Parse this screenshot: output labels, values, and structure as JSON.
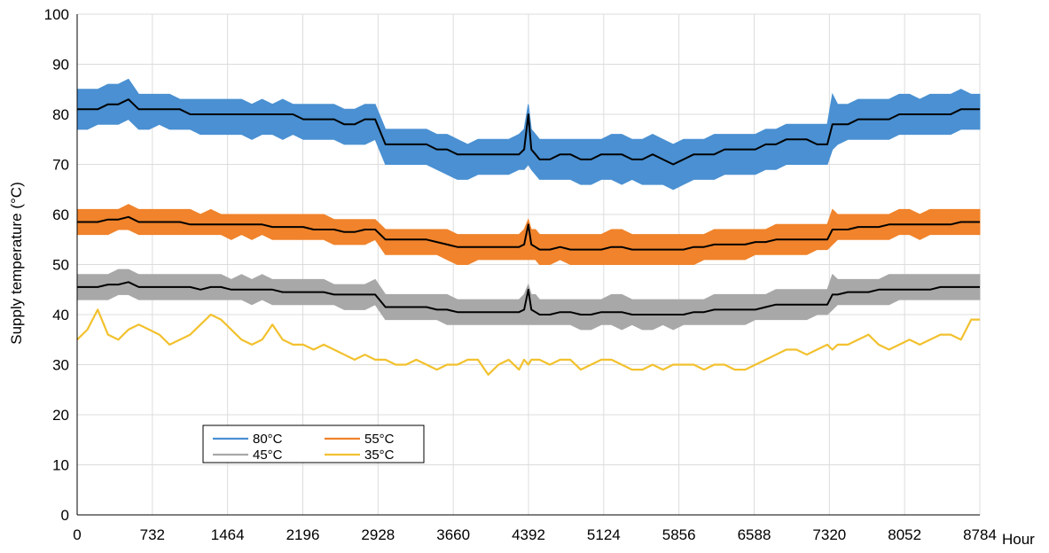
{
  "chart_data": {
    "type": "line",
    "title": "",
    "xlabel": "Hour",
    "ylabel": "Supply temperature (°C)",
    "xlim": [
      0,
      8784
    ],
    "ylim": [
      0,
      100
    ],
    "x_ticks": [
      0,
      732,
      1464,
      2196,
      2928,
      3660,
      4392,
      5124,
      5856,
      6588,
      7320,
      8052,
      8784
    ],
    "y_ticks": [
      0,
      10,
      20,
      30,
      40,
      50,
      60,
      70,
      80,
      90,
      100
    ],
    "grid": "vertical-and-horizontal",
    "legend_position": "lower-left",
    "x": [
      0,
      100,
      200,
      300,
      400,
      500,
      600,
      700,
      800,
      900,
      1000,
      1100,
      1200,
      1300,
      1400,
      1500,
      1600,
      1700,
      1800,
      1900,
      2000,
      2100,
      2200,
      2300,
      2400,
      2500,
      2600,
      2700,
      2800,
      2900,
      3000,
      3100,
      3200,
      3300,
      3400,
      3500,
      3600,
      3700,
      3800,
      3900,
      4000,
      4100,
      4200,
      4300,
      4350,
      4390,
      4420,
      4460,
      4500,
      4600,
      4700,
      4800,
      4900,
      5000,
      5100,
      5200,
      5300,
      5400,
      5500,
      5600,
      5700,
      5800,
      5900,
      6000,
      6100,
      6200,
      6300,
      6400,
      6500,
      6600,
      6700,
      6800,
      6900,
      7000,
      7100,
      7200,
      7300,
      7350,
      7400,
      7500,
      7600,
      7700,
      7800,
      7900,
      8000,
      8100,
      8200,
      8300,
      8400,
      8500,
      8600,
      8700,
      8784
    ],
    "series": [
      {
        "name": "80°C",
        "color": "#4a90d2",
        "upper": [
          85,
          85,
          85,
          86,
          86,
          87,
          84,
          84,
          84,
          84,
          83,
          83,
          83,
          83,
          83,
          83,
          83,
          82,
          83,
          82,
          83,
          82,
          82,
          82,
          82,
          82,
          81,
          81,
          82,
          82,
          77,
          77,
          77,
          77,
          77,
          76,
          76,
          75,
          74,
          75,
          75,
          75,
          75,
          76,
          77,
          82,
          77,
          76,
          75,
          75,
          75,
          75,
          75,
          75,
          75,
          76,
          76,
          75,
          75,
          76,
          75,
          74,
          75,
          75,
          75,
          76,
          76,
          76,
          76,
          76,
          77,
          77,
          78,
          78,
          78,
          78,
          78,
          84,
          82,
          82,
          83,
          83,
          83,
          83,
          84,
          84,
          83,
          84,
          84,
          84,
          85,
          84,
          84
        ],
        "lower": [
          77,
          77,
          78,
          78,
          78,
          79,
          77,
          77,
          78,
          77,
          77,
          77,
          76,
          76,
          76,
          76,
          76,
          75,
          76,
          76,
          75,
          76,
          75,
          75,
          75,
          75,
          74,
          74,
          74,
          75,
          70,
          70,
          70,
          70,
          70,
          69,
          68,
          67,
          67,
          68,
          68,
          68,
          68,
          69,
          69,
          70,
          69,
          68,
          67,
          67,
          67,
          67,
          66,
          66,
          67,
          67,
          66,
          67,
          66,
          66,
          66,
          65,
          66,
          67,
          67,
          67,
          68,
          68,
          68,
          68,
          69,
          69,
          70,
          70,
          70,
          70,
          70,
          73,
          74,
          75,
          75,
          75,
          75,
          75,
          76,
          76,
          76,
          76,
          76,
          76,
          77,
          77,
          77
        ]
      },
      {
        "name": "55°C",
        "color": "#f0832b",
        "upper": [
          61,
          61,
          61,
          61,
          61,
          62,
          61,
          61,
          61,
          61,
          61,
          61,
          60,
          61,
          60,
          60,
          60,
          60,
          60,
          60,
          60,
          60,
          60,
          60,
          60,
          59,
          59,
          59,
          59,
          59,
          57,
          57,
          57,
          57,
          57,
          57,
          57,
          56,
          56,
          56,
          56,
          56,
          56,
          56,
          57,
          59,
          57,
          57,
          56,
          56,
          56,
          56,
          56,
          56,
          56,
          57,
          57,
          56,
          56,
          56,
          56,
          56,
          56,
          56,
          56,
          57,
          57,
          57,
          57,
          57,
          57,
          58,
          58,
          58,
          58,
          58,
          58,
          61,
          60,
          60,
          60,
          60,
          60,
          60,
          61,
          61,
          60,
          61,
          61,
          61,
          61,
          61,
          61
        ],
        "lower": [
          56,
          56,
          56,
          56,
          57,
          57,
          56,
          56,
          56,
          56,
          56,
          56,
          56,
          56,
          56,
          55,
          56,
          55,
          56,
          55,
          55,
          55,
          55,
          55,
          55,
          54,
          54,
          54,
          54,
          55,
          52,
          52,
          52,
          52,
          52,
          52,
          51,
          50,
          50,
          51,
          51,
          51,
          51,
          51,
          51,
          51,
          51,
          51,
          50,
          50,
          51,
          50,
          50,
          50,
          50,
          50,
          50,
          50,
          50,
          50,
          50,
          50,
          50,
          50,
          51,
          51,
          51,
          51,
          51,
          52,
          52,
          52,
          52,
          52,
          52,
          53,
          53,
          54,
          55,
          55,
          55,
          55,
          55,
          55,
          56,
          56,
          55,
          56,
          56,
          56,
          56,
          56,
          56
        ]
      },
      {
        "name": "45°C",
        "color": "#a8a8a8",
        "upper": [
          48,
          48,
          48,
          48,
          49,
          49,
          48,
          48,
          48,
          48,
          48,
          48,
          48,
          48,
          48,
          47,
          48,
          47,
          48,
          47,
          47,
          47,
          47,
          47,
          47,
          46,
          46,
          46,
          46,
          47,
          44,
          44,
          44,
          44,
          44,
          44,
          44,
          43,
          43,
          43,
          43,
          43,
          43,
          43,
          44,
          46,
          44,
          44,
          43,
          43,
          43,
          43,
          43,
          43,
          43,
          44,
          44,
          43,
          43,
          43,
          43,
          43,
          43,
          43,
          43,
          44,
          44,
          44,
          44,
          44,
          44,
          45,
          45,
          45,
          45,
          45,
          45,
          48,
          47,
          47,
          47,
          47,
          47,
          48,
          48,
          48,
          48,
          48,
          48,
          48,
          48,
          48,
          48
        ],
        "lower": [
          43,
          43,
          43,
          43,
          44,
          44,
          43,
          43,
          43,
          43,
          43,
          43,
          43,
          43,
          43,
          43,
          43,
          42,
          43,
          42,
          42,
          42,
          42,
          42,
          42,
          42,
          41,
          41,
          41,
          42,
          39,
          39,
          39,
          39,
          39,
          39,
          38,
          38,
          38,
          38,
          38,
          38,
          38,
          38,
          38,
          38,
          38,
          38,
          38,
          38,
          38,
          38,
          37,
          37,
          38,
          38,
          37,
          38,
          37,
          37,
          38,
          37,
          38,
          38,
          38,
          38,
          38,
          38,
          38,
          39,
          39,
          39,
          39,
          39,
          39,
          40,
          40,
          41,
          42,
          42,
          42,
          42,
          42,
          42,
          43,
          43,
          43,
          43,
          43,
          43,
          43,
          43,
          43
        ]
      },
      {
        "name": "35°C",
        "color": "#f2c12e",
        "values": [
          35,
          37,
          41,
          36,
          35,
          37,
          38,
          37,
          36,
          34,
          35,
          36,
          38,
          40,
          39,
          37,
          35,
          34,
          35,
          38,
          35,
          34,
          34,
          33,
          34,
          33,
          32,
          31,
          32,
          31,
          31,
          30,
          30,
          31,
          30,
          29,
          30,
          30,
          31,
          31,
          28,
          30,
          31,
          29,
          31,
          30,
          31,
          31,
          31,
          30,
          31,
          31,
          29,
          30,
          31,
          31,
          30,
          29,
          29,
          30,
          29,
          30,
          30,
          30,
          29,
          30,
          30,
          29,
          29,
          30,
          31,
          32,
          33,
          33,
          32,
          33,
          34,
          33,
          34,
          34,
          35,
          36,
          34,
          33,
          34,
          35,
          34,
          35,
          36,
          36,
          35,
          39,
          39
        ]
      }
    ],
    "black_lines": [
      [
        81,
        81,
        81,
        82,
        82,
        83,
        81,
        81,
        81,
        81,
        81,
        80,
        80,
        80,
        80,
        80,
        80,
        80,
        80,
        80,
        80,
        80,
        79,
        79,
        79,
        79,
        78,
        78,
        79,
        79,
        74,
        74,
        74,
        74,
        74,
        73,
        73,
        72,
        72,
        72,
        72,
        72,
        72,
        72,
        73,
        80,
        73,
        72,
        71,
        71,
        72,
        72,
        71,
        71,
        72,
        72,
        72,
        71,
        71,
        72,
        71,
        70,
        71,
        72,
        72,
        72,
        73,
        73,
        73,
        73,
        74,
        74,
        75,
        75,
        75,
        74,
        74,
        78,
        78,
        78,
        79,
        79,
        79,
        79,
        80,
        80,
        80,
        80,
        80,
        80,
        81,
        81,
        81
      ],
      [
        58.5,
        58.5,
        58.5,
        59,
        59,
        59.5,
        58.5,
        58.5,
        58.5,
        58.5,
        58.5,
        58,
        58,
        58,
        58,
        58,
        58,
        58,
        58,
        57.5,
        57.5,
        57.5,
        57.5,
        57,
        57,
        57,
        56.5,
        56.5,
        57,
        57,
        55,
        55,
        55,
        55,
        55,
        54.5,
        54,
        53.5,
        53.5,
        53.5,
        53.5,
        53.5,
        53.5,
        53.5,
        54,
        58,
        54,
        53.5,
        53,
        53,
        53.5,
        53,
        53,
        53,
        53,
        53.5,
        53.5,
        53,
        53,
        53,
        53,
        53,
        53,
        53.5,
        53.5,
        54,
        54,
        54,
        54,
        54.5,
        54.5,
        55,
        55,
        55,
        55,
        55,
        55,
        57,
        57,
        57,
        57.5,
        57.5,
        57.5,
        58,
        58,
        58,
        58,
        58,
        58,
        58,
        58.5,
        58.5,
        58.5
      ],
      [
        45.5,
        45.5,
        45.5,
        46,
        46,
        46.5,
        45.5,
        45.5,
        45.5,
        45.5,
        45.5,
        45.5,
        45,
        45.5,
        45.5,
        45,
        45,
        45,
        45,
        45,
        44.5,
        44.5,
        44.5,
        44.5,
        44.5,
        44,
        44,
        44,
        44,
        44,
        41.5,
        41.5,
        41.5,
        41.5,
        41.5,
        41,
        41,
        40.5,
        40.5,
        40.5,
        40.5,
        40.5,
        40.5,
        40.5,
        41,
        45,
        41,
        40.5,
        40,
        40,
        40.5,
        40.5,
        40,
        40,
        40.5,
        40.5,
        40.5,
        40,
        40,
        40,
        40,
        40,
        40,
        40.5,
        40.5,
        41,
        41,
        41,
        41,
        41,
        41.5,
        42,
        42,
        42,
        42,
        42,
        42,
        44,
        44,
        44.5,
        44.5,
        44.5,
        45,
        45,
        45,
        45,
        45,
        45,
        45.5,
        45.5,
        45.5,
        45.5,
        45.5
      ]
    ]
  }
}
